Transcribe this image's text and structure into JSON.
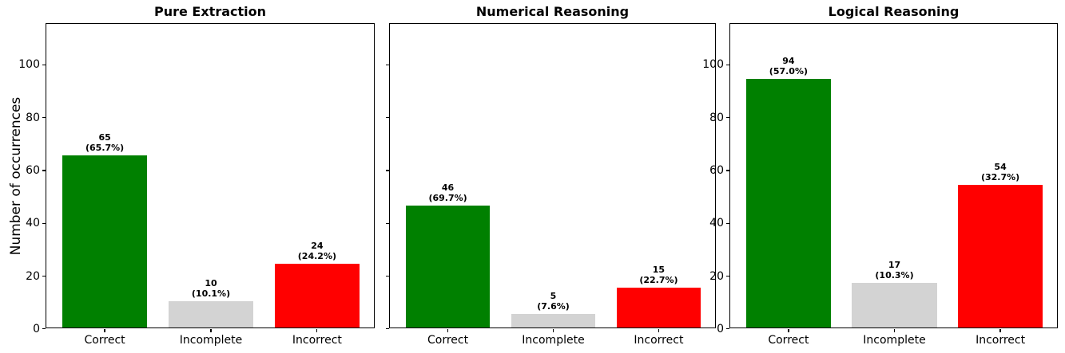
{
  "figure": {
    "ylabel": "Number of occurrences",
    "background_color": "#ffffff",
    "text_color": "#000000",
    "spine_color": "#000000"
  },
  "chart_data": [
    {
      "type": "bar",
      "title": "Pure Extraction",
      "xlabel": "",
      "ylabel": "Number of occurrences",
      "categories": [
        "Correct",
        "Incomplete",
        "Incorrect"
      ],
      "values": [
        65,
        10,
        24
      ],
      "count_labels": [
        "65",
        "10",
        "24"
      ],
      "percent_labels": [
        "(65.7%)",
        "(10.1%)",
        "(24.2%)"
      ],
      "bar_colors": [
        "#008000",
        "#d3d3d3",
        "#ff0000"
      ],
      "yticks": [
        0,
        20,
        40,
        60,
        80,
        100
      ],
      "ylim": [
        0,
        115.5
      ],
      "grid": false,
      "legend": "none",
      "ytick_labels_visible": true
    },
    {
      "type": "bar",
      "title": "Numerical Reasoning",
      "xlabel": "",
      "ylabel": "",
      "categories": [
        "Correct",
        "Incomplete",
        "Incorrect"
      ],
      "values": [
        46,
        5,
        15
      ],
      "count_labels": [
        "46",
        "5",
        "15"
      ],
      "percent_labels": [
        "(69.7%)",
        "(7.6%)",
        "(22.7%)"
      ],
      "bar_colors": [
        "#008000",
        "#d3d3d3",
        "#ff0000"
      ],
      "yticks": [
        0,
        20,
        40,
        60,
        80,
        100
      ],
      "ylim": [
        0,
        115.5
      ],
      "grid": false,
      "legend": "none",
      "ytick_labels_visible": false
    },
    {
      "type": "bar",
      "title": "Logical Reasoning",
      "xlabel": "",
      "ylabel": "",
      "categories": [
        "Correct",
        "Incomplete",
        "Incorrect"
      ],
      "values": [
        94,
        17,
        54
      ],
      "count_labels": [
        "94",
        "17",
        "54"
      ],
      "percent_labels": [
        "(57.0%)",
        "(10.3%)",
        "(32.7%)"
      ],
      "bar_colors": [
        "#008000",
        "#d3d3d3",
        "#ff0000"
      ],
      "yticks": [
        0,
        20,
        40,
        60,
        80,
        100
      ],
      "ylim": [
        0,
        115.5
      ],
      "grid": false,
      "legend": "none",
      "ytick_labels_visible": true
    }
  ]
}
